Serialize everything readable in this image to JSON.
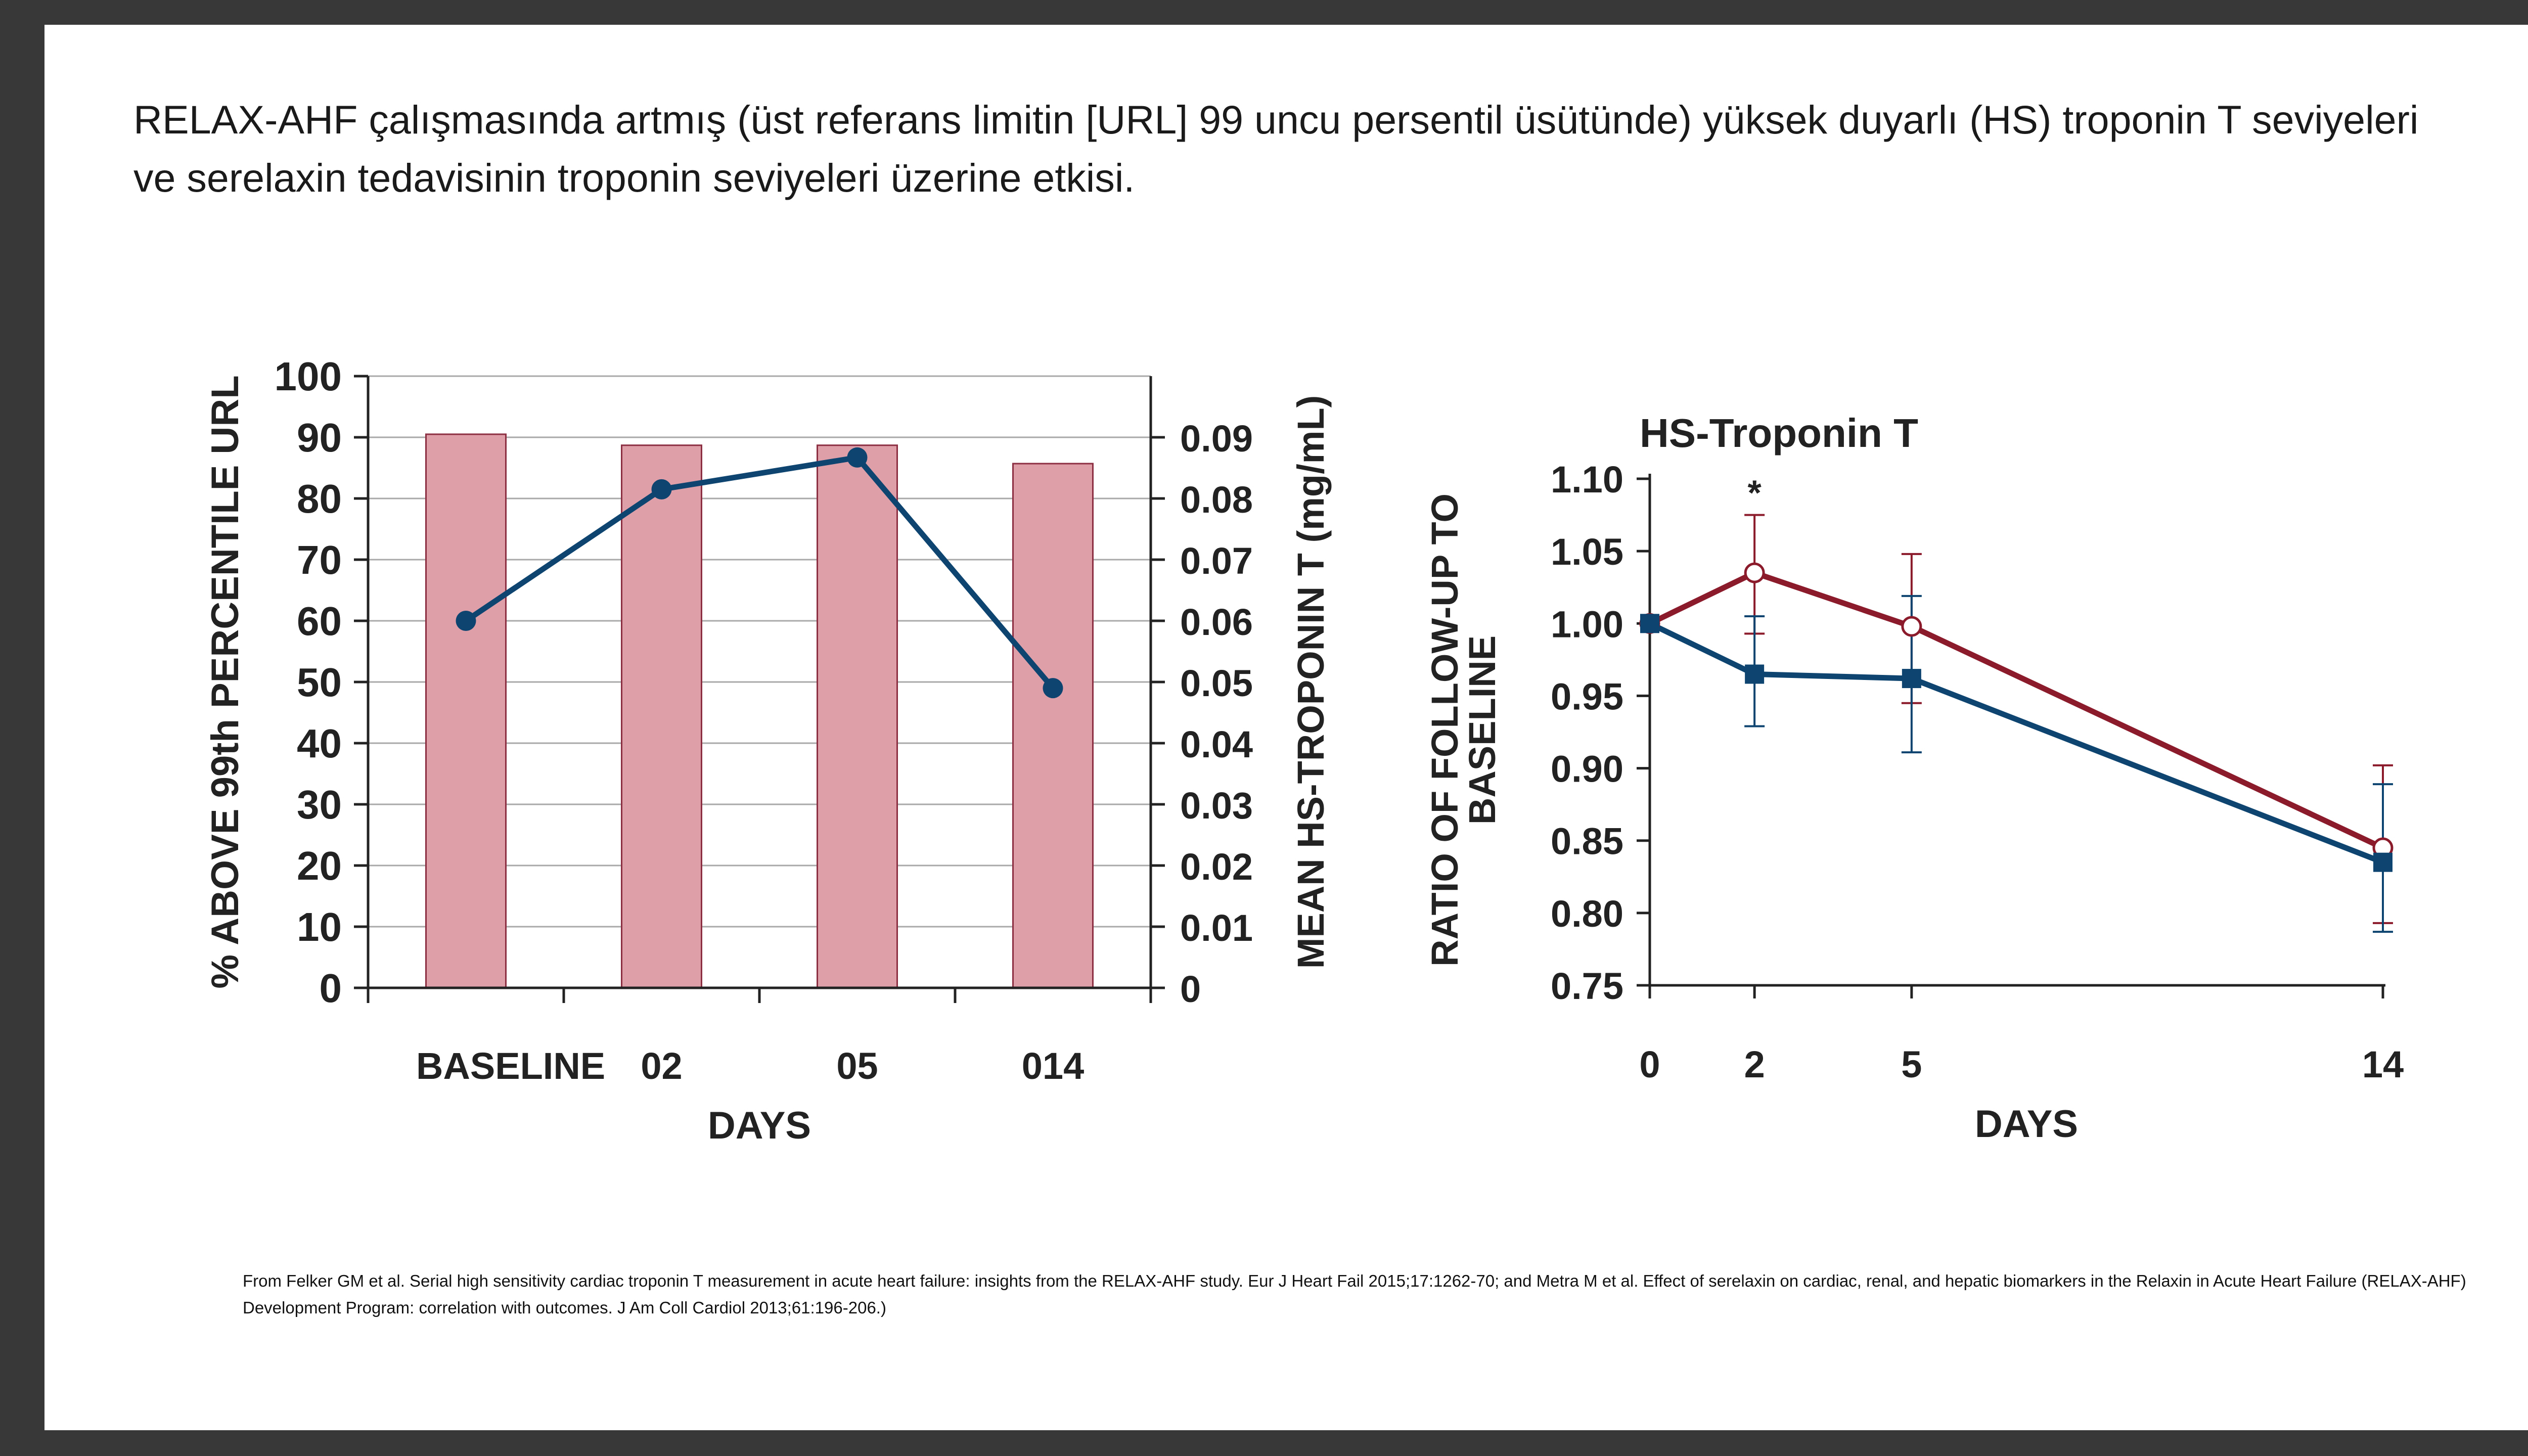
{
  "slide": {
    "title": "RELAX-AHF çalışmasında artmış (üst referans limitin [URL] 99 uncu persentil üsütünde)  yüksek duyarlı (HS) troponin T seviyeleri ve serelaxin tedavisinin troponin seviyeleri üzerine etkisi.",
    "citation": "From Felker GM et al. Serial high sensitivity cardiac troponin T measurement in acute heart failure: insights from the RELAX-AHF study. Eur J Heart Fail 2015;17:1262-70; and Metra M et al. Effect of serelaxin on cardiac, renal, and hepatic biomarkers in the Relaxin in Acute Heart Failure (RELAX-AHF) Development Program: correlation with outcomes. J Am Coll Cardiol 2013;61:196-206.)"
  },
  "chart_data": [
    {
      "type": "bar",
      "title": "",
      "xlabel": "DAYS",
      "ylabel": "% ABOVE 99th PERCENTILE URL",
      "y2label": "MEAN HS-TROPONIN  T (mg/mL)",
      "categories": [
        "BASELINE",
        "02",
        "05",
        "014"
      ],
      "ylim": [
        0,
        100
      ],
      "yticks": [
        0,
        10,
        20,
        30,
        40,
        50,
        60,
        70,
        80,
        90,
        100
      ],
      "y2lim": [
        0,
        0.1
      ],
      "y2ticks": [
        "0",
        "0.01",
        "0.02",
        "0.03",
        "0.04",
        "0.05",
        "0.06",
        "0.07",
        "0.08",
        "0.09"
      ],
      "grid": true,
      "series": [
        {
          "kind": "bar",
          "axis": "left",
          "values": [
            90.5,
            88.7,
            88.7,
            85.7
          ],
          "color": "#df9fa8"
        },
        {
          "kind": "line",
          "axis": "right",
          "values": [
            0.06,
            0.0815,
            0.0867,
            0.049
          ],
          "color": "#0d4470"
        }
      ]
    },
    {
      "type": "line",
      "title": "HS-Troponin T",
      "xlabel": "DAYS",
      "ylabel": "RATIO OF FOLLOW-UP TO BASELINE",
      "x": [
        0,
        2,
        5,
        14
      ],
      "xticks": [
        "0",
        "2",
        "5",
        "14"
      ],
      "ylim": [
        0.75,
        1.1
      ],
      "yticks": [
        "0.75",
        "0.80",
        "0.85",
        "0.90",
        "0.95",
        "1.00",
        "1.05",
        "1.10"
      ],
      "grid": false,
      "annotation": "*",
      "series": [
        {
          "values": [
            1.0,
            1.035,
            0.998,
            0.845
          ],
          "err_low": [
            1.0,
            0.993,
            0.945,
            0.793
          ],
          "err_high": [
            1.0,
            1.075,
            1.048,
            0.902
          ],
          "marker": "open-circle",
          "color": "#8b1a2b"
        },
        {
          "values": [
            1.0,
            0.965,
            0.962,
            0.835
          ],
          "err_low": [
            1.0,
            0.929,
            0.911,
            0.787
          ],
          "err_high": [
            1.0,
            1.005,
            1.019,
            0.889
          ],
          "marker": "filled-square",
          "color": "#0d4470"
        }
      ]
    }
  ]
}
